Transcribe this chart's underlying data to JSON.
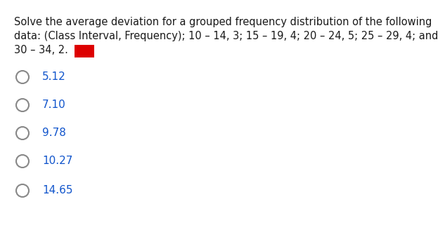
{
  "background_color": "#ffffff",
  "question_text_line1": "Solve the average deviation for a grouped frequency distribution of the following",
  "question_text_line2": "data: (Class Interval, Frequency); 10 – 14, 3; 15 – 19, 4; 20 – 24, 5; 25 – 29, 4; and",
  "question_text_line3": "30 – 34, 2.",
  "options": [
    "5.12",
    "7.10",
    "9.78",
    "10.27",
    "14.65"
  ],
  "text_color": "#1a1a1a",
  "option_text_color": "#1155cc",
  "circle_color": "#888888",
  "font_size_question": 10.5,
  "font_size_options": 11,
  "red_box_color": "#dd0000"
}
